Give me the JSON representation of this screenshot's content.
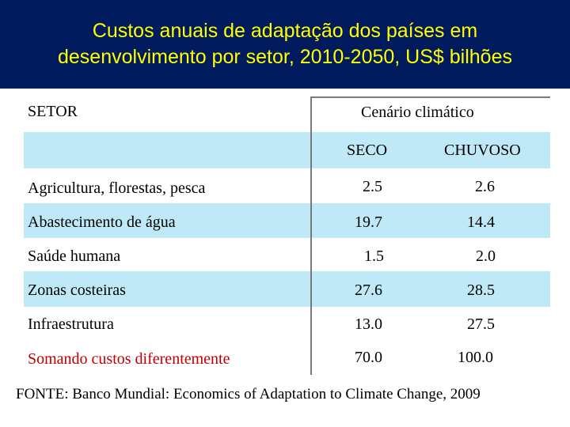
{
  "title": {
    "line1": "Custos anuais de adaptação dos países em",
    "line2": "desenvolvimento por setor, 2010-2050, US$ bilhões"
  },
  "table": {
    "col_sector": "SETOR",
    "col_scenario": "Cenário climático",
    "sub_dry": "SECO",
    "sub_wet": "CHUVOSO",
    "rows": [
      {
        "sector": "Agricultura, florestas, pesca",
        "seco": "2.5",
        "chuvoso": "2.6"
      },
      {
        "sector": "Abastecimento de água",
        "seco": "19.7",
        "chuvoso": "14.4"
      },
      {
        "sector": "Saúde humana",
        "seco": "1.5",
        "chuvoso": "2.0"
      },
      {
        "sector": "Zonas costeiras",
        "seco": "27.6",
        "chuvoso": "28.5"
      },
      {
        "sector": "Infraestrutura",
        "seco": "13.0",
        "chuvoso": "27.5"
      },
      {
        "sector": "Somando custos diferentemente",
        "seco": "70.0",
        "chuvoso": "100.0"
      }
    ]
  },
  "footer": "FONTE: Banco Mundial: Economics of Adaptation to Climate Change, 2009",
  "colors": {
    "title_bg": "#001a5e",
    "title_text": "#ffff00",
    "row_shade": "#bfe9f7",
    "total_text": "#c00000"
  }
}
